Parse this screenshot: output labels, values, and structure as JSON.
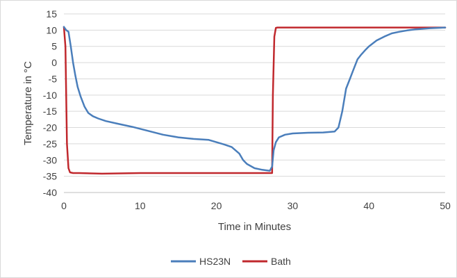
{
  "chart_data": {
    "type": "line",
    "title": "",
    "xlabel": "Time in Minutes",
    "ylabel": "Temperature in °C",
    "xlim": [
      0,
      50
    ],
    "ylim": [
      -40,
      15
    ],
    "xticks": [
      0,
      10,
      20,
      30,
      40,
      50
    ],
    "yticks": [
      15,
      10,
      5,
      0,
      -5,
      -10,
      -15,
      -20,
      -25,
      -30,
      -35,
      -40
    ],
    "grid": "horizontal",
    "legend": "bottom",
    "series": [
      {
        "name": "HS23N",
        "color": "#4a7ebb",
        "x": [
          0,
          0.3,
          0.6,
          0.9,
          1.2,
          1.5,
          1.8,
          2.2,
          2.7,
          3.2,
          3.8,
          4.5,
          5.5,
          7,
          9,
          11,
          13,
          15,
          17,
          19,
          20,
          21,
          22,
          23,
          23.5,
          24,
          25,
          26,
          27,
          27.3,
          27.5,
          27.8,
          28.2,
          29,
          30,
          32,
          34,
          35.5,
          36,
          36.5,
          37,
          37.5,
          38,
          38.5,
          39,
          39.5,
          40,
          41,
          42,
          43,
          44,
          45,
          46,
          47,
          48,
          49,
          50
        ],
        "y": [
          11,
          10,
          9.5,
          5,
          0,
          -4,
          -7.5,
          -10.5,
          -13.5,
          -15.5,
          -16.5,
          -17.2,
          -18,
          -18.8,
          -19.8,
          -21,
          -22.2,
          -23,
          -23.5,
          -23.8,
          -24.5,
          -25.2,
          -26,
          -28,
          -30,
          -31.2,
          -32.5,
          -33,
          -33.3,
          -32,
          -27,
          -24.5,
          -23,
          -22.2,
          -21.8,
          -21.6,
          -21.5,
          -21.2,
          -20,
          -15,
          -8,
          -5,
          -2,
          1,
          2.5,
          3.8,
          5,
          6.8,
          8,
          9,
          9.5,
          9.9,
          10.2,
          10.4,
          10.6,
          10.7,
          10.8
        ]
      },
      {
        "name": "Bath",
        "color": "#c0282d",
        "x": [
          0,
          0.2,
          0.4,
          0.6,
          0.8,
          1.2,
          2,
          5,
          10,
          15,
          20,
          25,
          27.3,
          27.4,
          27.6,
          27.8,
          28,
          30,
          35,
          40,
          45,
          50
        ],
        "y": [
          11,
          5,
          -25,
          -32.5,
          -33.8,
          -34,
          -34,
          -34.2,
          -34,
          -34,
          -34,
          -34,
          -34,
          -10,
          8,
          10.7,
          10.8,
          10.8,
          10.8,
          10.8,
          10.8,
          10.8
        ]
      }
    ]
  }
}
